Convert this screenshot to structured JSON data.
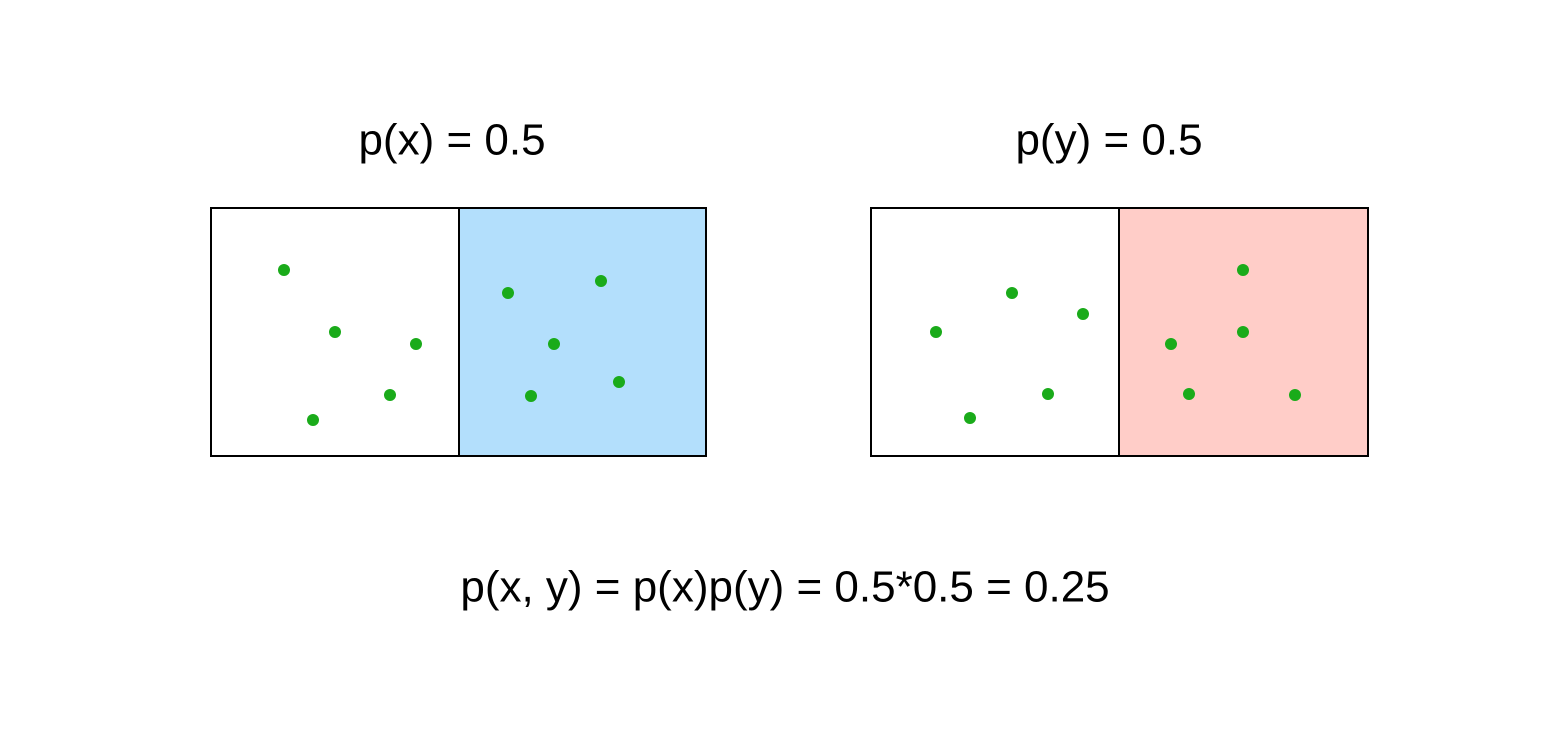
{
  "left_panel": {
    "title": "p(x) = 0.5"
  },
  "right_panel": {
    "title": "p(y) = 0.5"
  },
  "formula": "p(x, y) = p(x)p(y) = 0.5*0.5 = 0.25"
}
